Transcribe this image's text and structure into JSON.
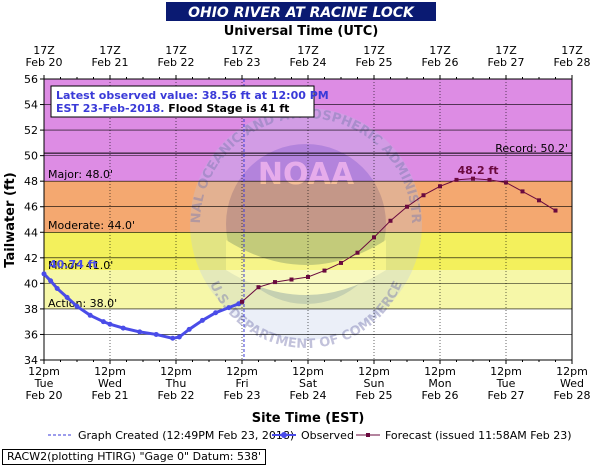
{
  "title": "OHIO RIVER AT RACINE LOCK",
  "top_axis_label": "Universal Time (UTC)",
  "bottom_axis_label": "Site Time (EST)",
  "y_axis_label": "Tailwater (ft)",
  "annotation": {
    "line1": "Latest observed value: 38.56 ft at 12:00 PM",
    "line2a": "EST 23-Feb-2018.",
    "line2b": " Flood Stage is 41 ft"
  },
  "stage_labels": {
    "record": "Record: 50.2'",
    "major": "Major: 48.0'",
    "moderate": "Moderate: 44.0'",
    "minor": "Minor: 41.0'",
    "action": "Action: 38.0'"
  },
  "peak_label": "48.2 ft",
  "start_value_label": "40.74 ft",
  "legend": {
    "created": "Graph Created (12:49PM Feb 23, 2018)",
    "observed": "Observed",
    "forecast": "Forecast (issued 11:58AM Feb 23)"
  },
  "footer": "RACW2(plotting HTIRG) \"Gage 0\" Datum: 538'",
  "watermark": {
    "top": "NATIONAL OCEANIC AND ATMOSPHERIC ADMINISTRATION",
    "bottom": "U.S. DEPARTMENT OF COMMERCE",
    "center": "NOAA"
  },
  "colors": {
    "record": "#dd8ce4",
    "major": "#e07a78",
    "moderate": "#f4a870",
    "minor": "#f3f05c",
    "observed": "#4a4ce8",
    "forecast": "#6a0a3e",
    "title_bg": "#0a1a72",
    "annotation_text": "#3a3ad8"
  },
  "chart_data": {
    "type": "line",
    "title": "OHIO RIVER AT RACINE LOCK",
    "xlabel": "Site Time (EST)",
    "x2label": "Universal Time (UTC)",
    "ylabel": "Tailwater (ft)",
    "ylim": [
      34,
      56
    ],
    "yticks": [
      34,
      36,
      38,
      40,
      42,
      44,
      46,
      48,
      50,
      52,
      54,
      56
    ],
    "x_ticks_bottom": [
      {
        "t1": "12pm",
        "t2": "Tue",
        "t3": "Feb 20"
      },
      {
        "t1": "12pm",
        "t2": "Wed",
        "t3": "Feb 21"
      },
      {
        "t1": "12pm",
        "t2": "Thu",
        "t3": "Feb 22"
      },
      {
        "t1": "12pm",
        "t2": "Fri",
        "t3": "Feb 23"
      },
      {
        "t1": "12pm",
        "t2": "Sat",
        "t3": "Feb 24"
      },
      {
        "t1": "12pm",
        "t2": "Sun",
        "t3": "Feb 25"
      },
      {
        "t1": "12pm",
        "t2": "Mon",
        "t3": "Feb 26"
      },
      {
        "t1": "12pm",
        "t2": "Tue",
        "t3": "Feb 27"
      },
      {
        "t1": "12pm",
        "t2": "Wed",
        "t3": "Feb 28"
      }
    ],
    "x_ticks_top": [
      {
        "t1": "17Z",
        "t2": "Feb 20"
      },
      {
        "t1": "17Z",
        "t2": "Feb 21"
      },
      {
        "t1": "17Z",
        "t2": "Feb 22"
      },
      {
        "t1": "17Z",
        "t2": "Feb 23"
      },
      {
        "t1": "17Z",
        "t2": "Feb 24"
      },
      {
        "t1": "17Z",
        "t2": "Feb 25"
      },
      {
        "t1": "17Z",
        "t2": "Feb 26"
      },
      {
        "t1": "17Z",
        "t2": "Feb 27"
      },
      {
        "t1": "17Z",
        "t2": "Feb 28"
      }
    ],
    "xlim_days": [
      0,
      8
    ],
    "graph_created_day": 3.03,
    "flood_categories": [
      {
        "name": "Action",
        "from": 38,
        "to": 41
      },
      {
        "name": "Minor",
        "from": 41,
        "to": 44
      },
      {
        "name": "Moderate",
        "from": 44,
        "to": 48
      },
      {
        "name": "Major",
        "from": 48,
        "to": 56
      }
    ],
    "record": 50.2,
    "series": [
      {
        "name": "Observed",
        "x_days_since_feb20_12pm": [
          0,
          0.1,
          0.2,
          0.35,
          0.5,
          0.7,
          0.9,
          1.0,
          1.2,
          1.45,
          1.7,
          1.95,
          2.05,
          2.2,
          2.4,
          2.6,
          2.8,
          2.95,
          3.0
        ],
        "values": [
          40.74,
          40.2,
          39.6,
          38.9,
          38.2,
          37.5,
          37.0,
          36.8,
          36.5,
          36.2,
          36.0,
          35.7,
          35.8,
          36.4,
          37.1,
          37.7,
          38.1,
          38.4,
          38.56
        ]
      },
      {
        "name": "Forecast",
        "x_days_since_feb20_12pm": [
          3.0,
          3.25,
          3.5,
          3.75,
          4.0,
          4.25,
          4.5,
          4.75,
          5.0,
          5.25,
          5.5,
          5.75,
          6.0,
          6.25,
          6.5,
          6.75,
          7.0,
          7.25,
          7.5,
          7.75
        ],
        "values": [
          38.56,
          39.7,
          40.1,
          40.3,
          40.5,
          41.0,
          41.6,
          42.4,
          43.6,
          44.9,
          46.0,
          46.9,
          47.6,
          48.1,
          48.2,
          48.1,
          47.9,
          47.2,
          46.5,
          45.7
        ]
      }
    ]
  }
}
